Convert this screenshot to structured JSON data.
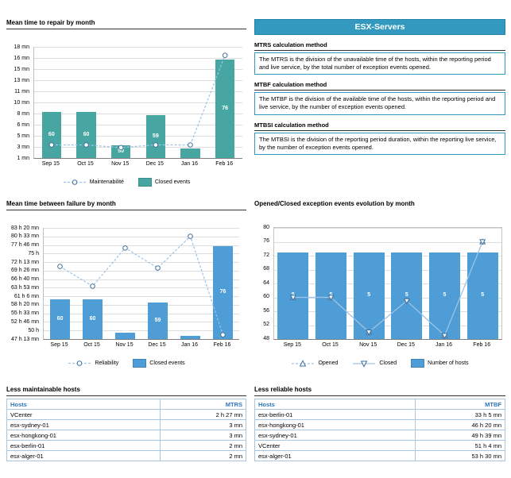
{
  "panel": {
    "title": "ESX-Servers",
    "sections": [
      {
        "heading": "MTRS calculation method",
        "body": "The MTRS is the division of the unavailable time of the hosts, within the reporting period and live service, by the total number of exception events opened."
      },
      {
        "heading": "MTBF calculation method",
        "body": "The MTBF is the division of the available time of the hosts, within the reporting period and live service, by the number of exception events opened."
      },
      {
        "heading": "MTBSI calculation method",
        "body": "The MTBSI is the division of the reporting period duration, within the reporting live service, by the number of exception events opened."
      }
    ]
  },
  "chart_data": [
    {
      "type": "bar+line",
      "title": "Mean time to repair by month",
      "categories": [
        "Sep 15",
        "Oct 15",
        "Nov 15",
        "Dec 15",
        "Jan 16",
        "Feb 16"
      ],
      "y_axis": {
        "min": 1,
        "max": 18,
        "tick_labels": [
          "18 mn",
          "16 mn",
          "15 mn",
          "13 mn",
          "11 mn",
          "10 mn",
          "8 mn",
          "6 mn",
          "5 mn",
          "3 mn",
          "1 mn"
        ]
      },
      "bar_series": {
        "name": "Closed events",
        "values": [
          60,
          60,
          50,
          59,
          49,
          76
        ],
        "color": "#47A6A1",
        "hidden_axis_min": 46,
        "hidden_axis_max": 80,
        "width_frac": 0.55
      },
      "line_series": [
        {
          "name": "Maintenabilité",
          "unit": "mn",
          "values": [
            3,
            3,
            2.6,
            3,
            3,
            16.7
          ],
          "marker": "circle",
          "style": "dashed"
        }
      ],
      "legend_position": "bottom"
    },
    {
      "type": "bar+line",
      "title": "Mean time between failure by month",
      "categories": [
        "Sep 15",
        "Oct 15",
        "Nov 15",
        "Dec 15",
        "Jan 16",
        "Feb 16"
      ],
      "y_axis": {
        "min": 47.22,
        "max": 83.33,
        "tick_labels": [
          "83 h 20 mn",
          "80 h 33 mn",
          "77 h 46 mn",
          "75 h",
          "72 h 13 mn",
          "69 h 26 mn",
          "66 h 40 mn",
          "63 h 53 mn",
          "61 h 6 mn",
          "58 h 20 mn",
          "55 h 33 mn",
          "52 h 46 mn",
          "50 h",
          "47 h 13 mn"
        ]
      },
      "bar_series": {
        "name": "Closed events",
        "values": [
          60,
          60,
          50,
          59,
          49,
          76
        ],
        "color": "#4E9DD6",
        "hidden_axis_min": 48,
        "hidden_axis_max": 81.5,
        "width_frac": 0.6
      },
      "line_series": [
        {
          "name": "Reliability",
          "unit": "h",
          "values": [
            70.8,
            64.4,
            76.8,
            70.3,
            80.6,
            48.6
          ],
          "marker": "circle",
          "style": "dashed"
        }
      ],
      "legend_position": "bottom"
    },
    {
      "type": "bar+line",
      "title": "Opened/Closed exception events evolution by month",
      "categories": [
        "Sep 15",
        "Oct 15",
        "Nov 15",
        "Dec 15",
        "Jan 16",
        "Feb 16"
      ],
      "y_axis": {
        "min": 48,
        "max": 80,
        "tick_labels": [
          "80",
          "76",
          "72",
          "68",
          "64",
          "60",
          "56",
          "52",
          "48"
        ]
      },
      "bar_series": {
        "name": "Number of hosts",
        "values": [
          5,
          5,
          5,
          5,
          5,
          5
        ],
        "color": "#4E9DD6",
        "hidden_axis_min": 0,
        "hidden_axis_max": 6.4,
        "width_frac": 0.82
      },
      "line_series": [
        {
          "name": "Opened",
          "values": [
            60,
            60,
            50,
            59,
            49,
            76
          ],
          "marker": "triangle-up",
          "style": "dashed"
        },
        {
          "name": "Closed",
          "values": [
            60,
            60,
            50,
            59,
            49,
            76
          ],
          "marker": "triangle-down",
          "style": "solid"
        }
      ],
      "legend_position": "bottom"
    }
  ],
  "tables": [
    {
      "title": "Less maintainable hosts",
      "columns": [
        "Hosts",
        "MTRS"
      ],
      "rows": [
        [
          "VCenter",
          "2 h 27 mn"
        ],
        [
          "esx-sydney-01",
          "3 mn"
        ],
        [
          "esx-hongkong-01",
          "3 mn"
        ],
        [
          "esx-berlin-01",
          "2 mn"
        ],
        [
          "esx-alger-01",
          "2 mn"
        ]
      ]
    },
    {
      "title": "Less reliable hosts",
      "columns": [
        "Hosts",
        "MTBF"
      ],
      "rows": [
        [
          "esx-berlin-01",
          "33 h 5 mn"
        ],
        [
          "esx-hongkong-01",
          "46 h 20 mn"
        ],
        [
          "esx-sydney-01",
          "49 h 39 mn"
        ],
        [
          "VCenter",
          "51 h 4 mn"
        ],
        [
          "esx-alger-01",
          "53 h 30 mn"
        ]
      ]
    }
  ],
  "colors": {
    "banner": "#3399BF",
    "teal_bar": "#47A6A1",
    "blue_bar": "#4E9DD6",
    "line": "#9DC3E6",
    "marker_stroke": "#41719C",
    "table_border": "#A9C6E0",
    "table_header_text": "#2E75B6"
  }
}
